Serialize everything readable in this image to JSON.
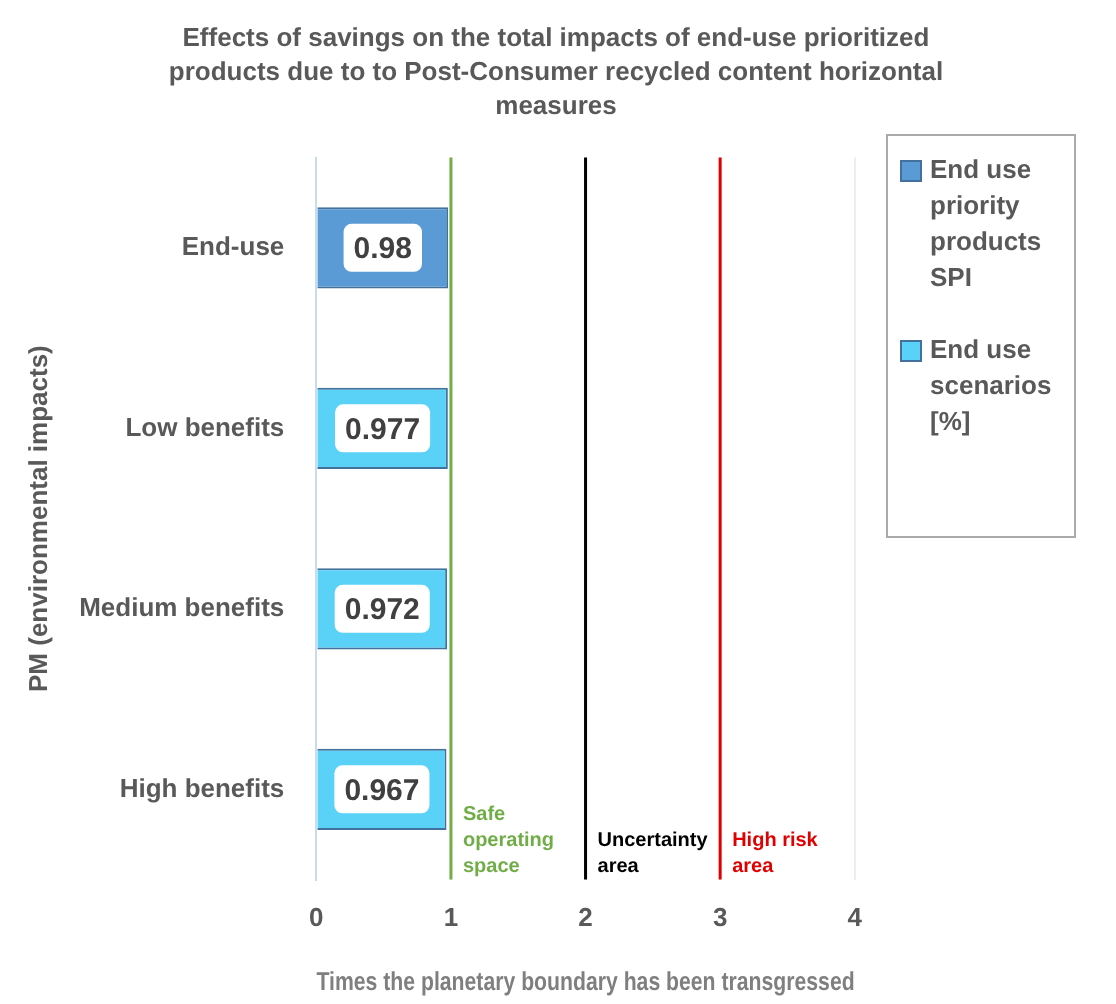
{
  "chart_data": {
    "type": "bar",
    "orientation": "horizontal",
    "title": "Effects of savings on the total impacts of end-use prioritized products due to to Post-Consumer recycled content  horizontal measures",
    "xlabel": "Times the planetary boundary has been transgressed",
    "ylabel": "PM (environmental impacts)",
    "categories": [
      "End-use",
      "Low benefits",
      "Medium benefits",
      "High benefits"
    ],
    "series": [
      {
        "name": "End use priority products SPI",
        "color": "#5b9bd5",
        "values": [
          0.98,
          null,
          null,
          null
        ]
      },
      {
        "name": "End use scenarios [%]",
        "color": "#5ad2f8",
        "values": [
          null,
          0.977,
          0.972,
          0.967
        ]
      }
    ],
    "xlim": [
      0,
      4
    ],
    "xticks": [
      0,
      1,
      2,
      3,
      4
    ],
    "grid": "x",
    "legend": "top right",
    "data_labels": true,
    "ref_lines": [
      {
        "axis": "x",
        "value": 1,
        "label": "Safe operating space",
        "color": "#70ad47"
      },
      {
        "axis": "x",
        "value": 2,
        "label": "Uncertainty area",
        "color": "#000000"
      },
      {
        "axis": "x",
        "value": 3,
        "label": "High risk area",
        "color": "#e00000"
      }
    ]
  }
}
